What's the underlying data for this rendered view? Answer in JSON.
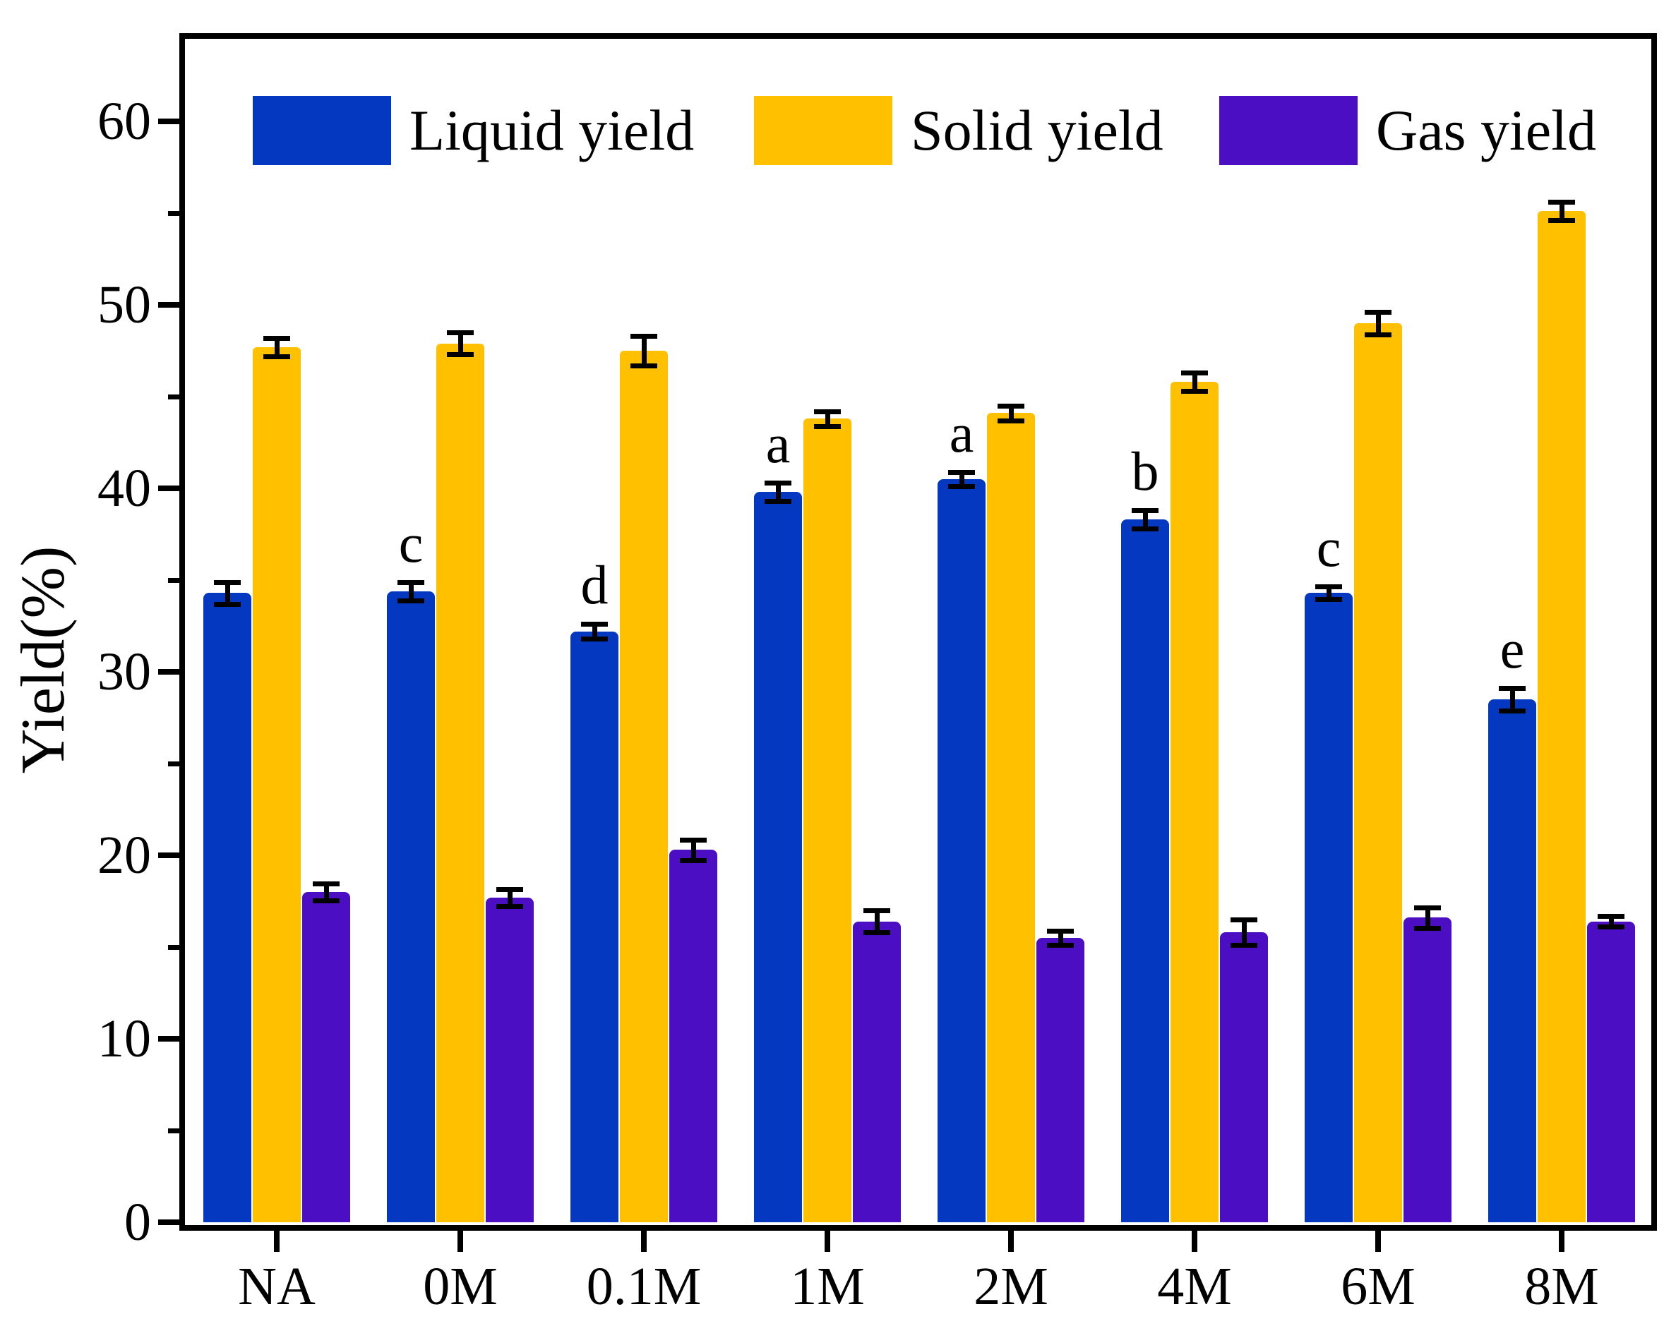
{
  "figure_background": "#ffffff",
  "axis_color": "#000000",
  "chart_data": {
    "type": "bar",
    "title": "",
    "xlabel": "",
    "ylabel": "Yield(%)",
    "ylim": [
      0,
      64.7
    ],
    "yticks": [
      0,
      10,
      20,
      30,
      40,
      50,
      60
    ],
    "minor_tick_step": 5,
    "grid": false,
    "error_bars": true,
    "legend_position": "top-inside",
    "categories": [
      "NA",
      "0M",
      "0.1M",
      "1M",
      "2M",
      "4M",
      "6M",
      "8M"
    ],
    "series": [
      {
        "name": "Liquid yield",
        "color": "#0438c0",
        "values": [
          34.3,
          34.4,
          32.2,
          39.8,
          40.5,
          38.3,
          34.3,
          28.5
        ],
        "errors": [
          0.6,
          0.5,
          0.4,
          0.5,
          0.4,
          0.5,
          0.35,
          0.6
        ]
      },
      {
        "name": "Solid yield",
        "color": "#ffc000",
        "values": [
          47.7,
          47.9,
          47.5,
          43.8,
          44.1,
          45.8,
          49.0,
          55.1
        ],
        "errors": [
          0.5,
          0.6,
          0.8,
          0.4,
          0.4,
          0.5,
          0.6,
          0.5
        ]
      },
      {
        "name": "Gas yield",
        "color": "#4c0ec2",
        "values": [
          18.0,
          17.7,
          20.3,
          16.4,
          15.5,
          15.8,
          16.6,
          16.4
        ],
        "errors": [
          0.45,
          0.45,
          0.55,
          0.6,
          0.4,
          0.7,
          0.55,
          0.3
        ]
      }
    ],
    "annotations": {
      "series": "Liquid yield",
      "letters_by_category": [
        "",
        "c",
        "d",
        "a",
        "a",
        "b",
        "c",
        "e"
      ]
    }
  }
}
